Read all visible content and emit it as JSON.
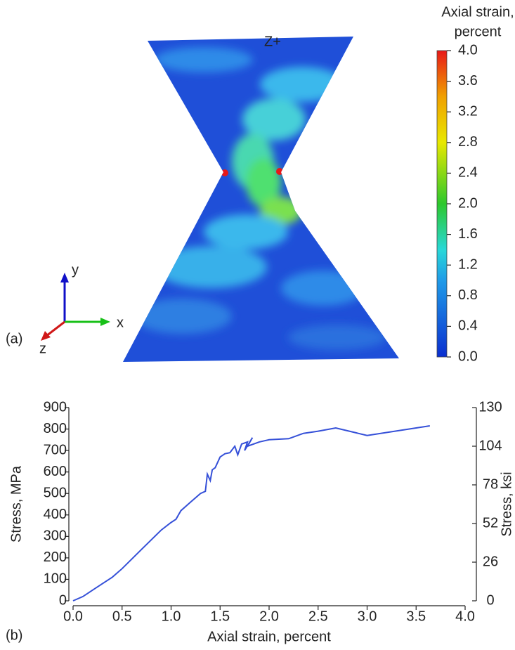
{
  "panel_a": {
    "label": "(a)",
    "view_label": "Z+",
    "axis_labels": {
      "x": "x",
      "y": "y",
      "z": "z"
    }
  },
  "panel_b": {
    "label": "(b)"
  },
  "chart_data": [
    {
      "type": "colorbar",
      "title_lines": [
        "Axial strain,",
        "percent"
      ],
      "ylim": [
        0,
        4
      ],
      "yticks": [
        {
          "value": 0,
          "label": "0.0"
        },
        0.4,
        0.8,
        1.2,
        1.6,
        {
          "value": 2,
          "label": "2.0"
        },
        2.4,
        2.8,
        3.2,
        3.6,
        {
          "value": 4,
          "label": "4.0"
        }
      ]
    },
    {
      "type": "line",
      "color": "#3550d8",
      "xlabel": "Axial strain, percent",
      "ylabel": "Stress, MPa",
      "y2label": "Stress, ksi",
      "x": [
        0,
        0.1,
        0.2,
        0.3,
        0.4,
        0.5,
        0.6,
        0.7,
        0.8,
        0.9,
        1.0,
        1.05,
        1.1,
        1.2,
        1.3,
        1.35,
        1.37,
        1.4,
        1.42,
        1.45,
        1.5,
        1.55,
        1.6,
        1.65,
        1.68,
        1.72,
        1.78,
        1.75,
        1.83,
        1.78,
        1.9,
        2.0,
        2.2,
        2.35,
        2.5,
        2.68,
        3.0,
        3.64
      ],
      "values": [
        0,
        20,
        50,
        80,
        110,
        150,
        195,
        240,
        285,
        330,
        365,
        380,
        420,
        460,
        500,
        510,
        590,
        560,
        610,
        620,
        670,
        685,
        690,
        720,
        680,
        730,
        740,
        700,
        760,
        720,
        740,
        750,
        755,
        780,
        790,
        805,
        770,
        815
      ],
      "xlim": [
        0,
        4
      ],
      "ylim": [
        0,
        900
      ],
      "y2lim": [
        0,
        130
      ],
      "xticks": [
        {
          "value": 0,
          "label": "0.0"
        },
        0.5,
        {
          "value": 1,
          "label": "1.0"
        },
        1.5,
        {
          "value": 2,
          "label": "2.0"
        },
        2.5,
        {
          "value": 3,
          "label": "3.0"
        },
        3.5,
        {
          "value": 4,
          "label": "4.0"
        }
      ],
      "yticks": [
        0,
        100,
        200,
        300,
        400,
        500,
        600,
        700,
        800,
        900
      ],
      "y2ticks": [
        0,
        26,
        52,
        78,
        104,
        130
      ]
    }
  ]
}
